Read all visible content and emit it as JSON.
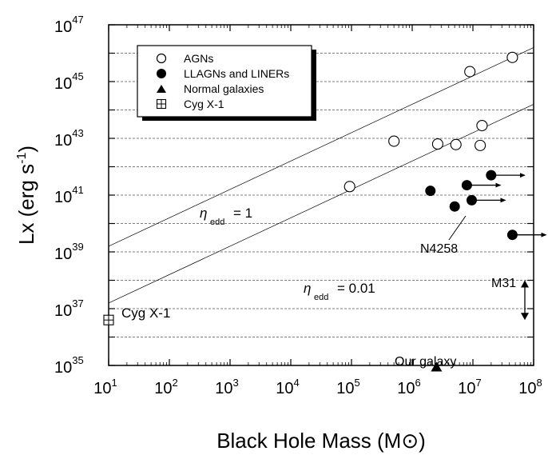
{
  "chart_data": {
    "type": "scatter",
    "title": "",
    "xlabel": "Black Hole Mass (M",
    "xlabel_sun": "⊙",
    "xlabel_close": ")",
    "ylabel_prefix": "Lx  (erg s",
    "ylabel_exp": "-1",
    "ylabel_suffix": ")",
    "x_scale": "log",
    "y_scale": "log",
    "xlim": [
      10,
      100000000
    ],
    "ylim": [
      100000000000000000000000000000000000,
      10000000000000000000000000000000000000000000000
    ],
    "grid": "horizontal dashed",
    "x_ticks": [
      {
        "base": "10",
        "exp": "1",
        "value": 10
      },
      {
        "base": "10",
        "exp": "2",
        "value": 100
      },
      {
        "base": "10",
        "exp": "3",
        "value": 1000
      },
      {
        "base": "10",
        "exp": "4",
        "value": 10000
      },
      {
        "base": "10",
        "exp": "5",
        "value": 100000
      },
      {
        "base": "10",
        "exp": "6",
        "value": 1000000
      },
      {
        "base": "10",
        "exp": "7",
        "value": 10000000
      },
      {
        "base": "10",
        "exp": "8",
        "value": 100000000
      }
    ],
    "y_ticks": [
      {
        "base": "10",
        "exp": "35",
        "logv": 35
      },
      {
        "base": "10",
        "exp": "37",
        "logv": 37
      },
      {
        "base": "10",
        "exp": "39",
        "logv": 39
      },
      {
        "base": "10",
        "exp": "41",
        "logv": 41
      },
      {
        "base": "10",
        "exp": "43",
        "logv": 43
      },
      {
        "base": "10",
        "exp": "45",
        "logv": 45
      },
      {
        "base": "10",
        "exp": "47",
        "logv": 47
      }
    ],
    "legend": {
      "position": "top-left",
      "entries": [
        {
          "marker": "open-circle",
          "label": "AGNs"
        },
        {
          "marker": "filled-circle",
          "label": "LLAGNs  and  LINERs"
        },
        {
          "marker": "filled-triangle",
          "label": "Normal   galaxies"
        },
        {
          "marker": "crossed-square",
          "label": "Cyg  X-1"
        }
      ]
    },
    "series": [
      {
        "name": "AGNs",
        "marker": "open-circle",
        "points": [
          {
            "logx": 4.97,
            "logy": 41.3
          },
          {
            "logx": 5.7,
            "logy": 42.9
          },
          {
            "logx": 6.42,
            "logy": 42.8
          },
          {
            "logx": 6.72,
            "logy": 42.78
          },
          {
            "logx": 6.95,
            "logy": 45.35
          },
          {
            "logx": 7.12,
            "logy": 42.75
          },
          {
            "logx": 7.15,
            "logy": 43.45
          },
          {
            "logx": 7.65,
            "logy": 45.85
          }
        ]
      },
      {
        "name": "LLAGNs  and  LINERs",
        "marker": "filled-circle",
        "points": [
          {
            "logx": 6.3,
            "logy": 41.15,
            "lower_limit_x": false
          },
          {
            "logx": 6.7,
            "logy": 40.6,
            "lower_limit_x": false
          },
          {
            "logx": 6.9,
            "logy": 41.35,
            "lower_limit_x": true
          },
          {
            "logx": 6.98,
            "logy": 40.82,
            "lower_limit_x": true
          },
          {
            "logx": 7.3,
            "logy": 41.7,
            "lower_limit_x": true
          },
          {
            "logx": 7.65,
            "logy": 39.6,
            "lower_limit_x": true
          }
        ]
      },
      {
        "name": "Normal   galaxies",
        "marker": "filled-triangle",
        "points": [
          {
            "logx": 6.4,
            "logy": 34.9
          }
        ]
      },
      {
        "name": "Cyg  X-1",
        "marker": "crossed-square",
        "points": [
          {
            "logx": 1.0,
            "logy": 36.6
          }
        ]
      }
    ],
    "m31_limit": {
      "logx": 8.0,
      "logy_low": 36.6,
      "logy_high": 38.0
    },
    "eddington_lines": [
      {
        "label_sym": "η",
        "label_sub": "edd",
        "label_val": "= 1",
        "logL_at_logM0": 38.2
      },
      {
        "label_sym": "η",
        "label_sub": "edd",
        "label_val": "= 0.01",
        "logL_at_logM0": 36.2
      }
    ],
    "annotations": [
      {
        "text": "Cyg  X-1"
      },
      {
        "text": "N4258"
      },
      {
        "text": "M31"
      },
      {
        "text": "Our   galaxy"
      }
    ]
  }
}
